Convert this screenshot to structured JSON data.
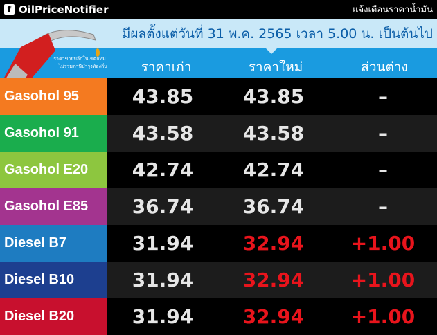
{
  "topbar": {
    "brand": "OilPriceNotifier",
    "fb_icon": "f",
    "tagline": "แจ้งเตือนราคาน้ำมัน"
  },
  "header": {
    "effective": "มีผลตั้งแต่วันที่ 31 พ.ค. 2565 เวลา 5.00 น. เป็นต้นไป",
    "note1": "ราคาขายปลีกในเขตกทม.",
    "note2": "ไม่รวมภาษีบำรุงท้องถิ่น",
    "columns": [
      "ราคาเก่า",
      "ราคาใหม่",
      "ส่วนต่าง"
    ]
  },
  "colors": {
    "increase": "#e8141c",
    "header_blue": "#1a9be0",
    "band": "#c9e8f8"
  },
  "rows": [
    {
      "name": "Gasohol 95",
      "old": "43.85",
      "new": "43.85",
      "diff": "–",
      "color": "#f47a20",
      "changed": false
    },
    {
      "name": "Gasohol 91",
      "old": "43.58",
      "new": "43.58",
      "diff": "–",
      "color": "#1aad4d",
      "changed": false
    },
    {
      "name": "Gasohol E20",
      "old": "42.74",
      "new": "42.74",
      "diff": "–",
      "color": "#8dc63f",
      "changed": false
    },
    {
      "name": "Gasohol E85",
      "old": "36.74",
      "new": "36.74",
      "diff": "–",
      "color": "#a3348f",
      "changed": false
    },
    {
      "name": "Diesel B7",
      "old": "31.94",
      "new": "32.94",
      "diff": "+1.00",
      "color": "#1e7cc1",
      "changed": true
    },
    {
      "name": "Diesel B10",
      "old": "31.94",
      "new": "32.94",
      "diff": "+1.00",
      "color": "#1d3f8f",
      "changed": true
    },
    {
      "name": "Diesel B20",
      "old": "31.94",
      "new": "32.94",
      "diff": "+1.00",
      "color": "#c8102e",
      "changed": true
    }
  ]
}
